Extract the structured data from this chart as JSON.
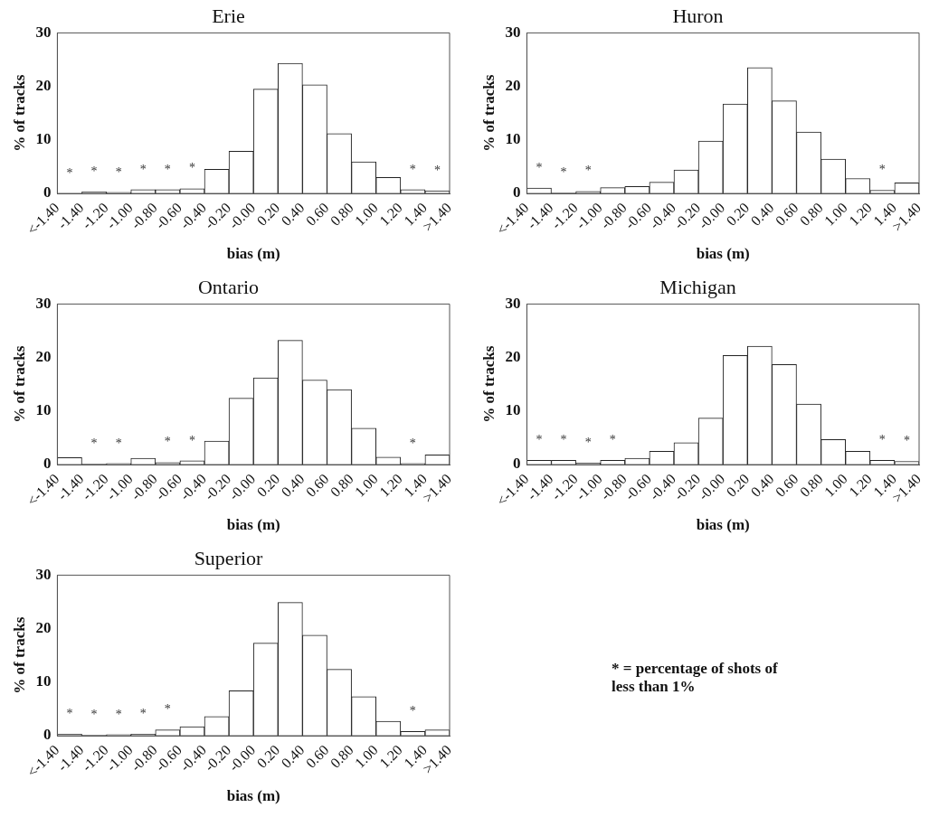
{
  "chart_data": [
    {
      "type": "histogram",
      "title": "Erie",
      "xlabel": "bias (m)",
      "ylabel": "% of tracks",
      "color": "#ffffff",
      "bins": [
        -1.6,
        -1.4,
        -1.2,
        -1.0,
        -0.8,
        -0.6,
        -0.4,
        -0.2,
        0,
        0.2,
        0.4,
        0.6,
        0.8,
        1.0,
        1.2,
        1.4,
        1.6
      ],
      "values": [
        0,
        0.3,
        0.2,
        0.7,
        0.7,
        0.9,
        4.5,
        7.9,
        19.5,
        24.3,
        20.3,
        11.2,
        5.9,
        3.0,
        0.7,
        0.5
      ],
      "value_labels": [
        "*",
        "*",
        "*",
        "*",
        "*",
        "*",
        null,
        null,
        null,
        null,
        null,
        null,
        null,
        null,
        "*",
        "*"
      ],
      "xlim": [
        -1.6,
        1.6
      ],
      "ylim": [
        0,
        30
      ],
      "yticks": [
        0,
        10,
        20,
        30
      ],
      "xticks": [
        {
          "value": -1.6,
          "label": "<-1.40"
        },
        {
          "value": -1.4,
          "label": "-1.40"
        },
        {
          "value": -1.2,
          "label": "-1.20"
        },
        {
          "value": -1.0,
          "label": "-1.00"
        },
        {
          "value": -0.8,
          "label": "-0.80"
        },
        {
          "value": -0.6,
          "label": "-0.60"
        },
        {
          "value": -0.4,
          "label": "-0.40"
        },
        {
          "value": -0.2,
          "label": "-0.20"
        },
        {
          "value": 0,
          "label": "-0.00"
        },
        {
          "value": 0.2,
          "label": "0.20"
        },
        {
          "value": 0.4,
          "label": "0.40"
        },
        {
          "value": 0.6,
          "label": "0.60"
        },
        {
          "value": 0.8,
          "label": "0.80"
        },
        {
          "value": 1.0,
          "label": "1.00"
        },
        {
          "value": 1.2,
          "label": "1.20"
        },
        {
          "value": 1.4,
          "label": "1.40"
        },
        {
          "value": 1.6,
          "label": ">1.40"
        }
      ]
    },
    {
      "type": "histogram",
      "title": "Huron",
      "xlabel": "bias (m)",
      "ylabel": "% of tracks",
      "color": "#ffffff",
      "bins": [
        -1.6,
        -1.4,
        -1.2,
        -1.0,
        -0.8,
        -0.6,
        -0.4,
        -0.2,
        0,
        0.2,
        0.4,
        0.6,
        0.8,
        1.0,
        1.2,
        1.4,
        1.6
      ],
      "values": [
        1.0,
        0.1,
        0.4,
        1.1,
        1.3,
        2.1,
        4.4,
        9.8,
        16.7,
        23.5,
        17.3,
        11.5,
        6.4,
        2.8,
        0.6,
        2.0
      ],
      "value_labels": [
        "*",
        "*",
        "*",
        null,
        null,
        null,
        null,
        null,
        null,
        null,
        null,
        null,
        null,
        null,
        "*",
        null
      ],
      "xlim": [
        -1.6,
        1.6
      ],
      "ylim": [
        0,
        30
      ],
      "yticks": [
        0,
        10,
        20,
        30
      ],
      "xticks": [
        {
          "value": -1.6,
          "label": "<-1.40"
        },
        {
          "value": -1.4,
          "label": "-1.40"
        },
        {
          "value": -1.2,
          "label": "-1.20"
        },
        {
          "value": -1.0,
          "label": "-1.00"
        },
        {
          "value": -0.8,
          "label": "-0.80"
        },
        {
          "value": -0.6,
          "label": "-0.60"
        },
        {
          "value": -0.4,
          "label": "-0.40"
        },
        {
          "value": -0.2,
          "label": "-0.20"
        },
        {
          "value": 0,
          "label": "-0.00"
        },
        {
          "value": 0.2,
          "label": "0.20"
        },
        {
          "value": 0.4,
          "label": "0.40"
        },
        {
          "value": 0.6,
          "label": "0.60"
        },
        {
          "value": 0.8,
          "label": "0.80"
        },
        {
          "value": 1.0,
          "label": "1.00"
        },
        {
          "value": 1.2,
          "label": "1.20"
        },
        {
          "value": 1.4,
          "label": "1.40"
        },
        {
          "value": 1.6,
          "label": ">1.40"
        }
      ]
    },
    {
      "type": "histogram",
      "title": "Ontario",
      "xlabel": "bias (m)",
      "ylabel": "% of tracks",
      "color": "#ffffff",
      "bins": [
        -1.6,
        -1.4,
        -1.2,
        -1.0,
        -0.8,
        -0.6,
        -0.4,
        -0.2,
        0,
        0.2,
        0.4,
        0.6,
        0.8,
        1.0,
        1.2,
        1.4,
        1.6
      ],
      "values": [
        1.3,
        0.1,
        0.2,
        1.2,
        0.4,
        0.7,
        4.4,
        12.4,
        16.2,
        23.2,
        15.8,
        14.0,
        6.8,
        1.4,
        0.2,
        1.8
      ],
      "value_labels": [
        null,
        "*",
        "*",
        null,
        "*",
        "*",
        null,
        null,
        null,
        null,
        null,
        null,
        null,
        null,
        "*",
        null
      ],
      "xlim": [
        -1.6,
        1.6
      ],
      "ylim": [
        0,
        30
      ],
      "yticks": [
        0,
        10,
        20,
        30
      ],
      "xticks": [
        {
          "value": -1.6,
          "label": "<-1.40"
        },
        {
          "value": -1.4,
          "label": "-1.40"
        },
        {
          "value": -1.2,
          "label": "-1.20"
        },
        {
          "value": -1.0,
          "label": "-1.00"
        },
        {
          "value": -0.8,
          "label": "-0.80"
        },
        {
          "value": -0.6,
          "label": "-0.60"
        },
        {
          "value": -0.4,
          "label": "-0.40"
        },
        {
          "value": -0.2,
          "label": "-0.20"
        },
        {
          "value": 0,
          "label": "-0.00"
        },
        {
          "value": 0.2,
          "label": "0.20"
        },
        {
          "value": 0.4,
          "label": "0.40"
        },
        {
          "value": 0.6,
          "label": "0.60"
        },
        {
          "value": 0.8,
          "label": "0.80"
        },
        {
          "value": 1.0,
          "label": "1.00"
        },
        {
          "value": 1.2,
          "label": "1.20"
        },
        {
          "value": 1.4,
          "label": "1.40"
        },
        {
          "value": 1.6,
          "label": ">1.40"
        }
      ]
    },
    {
      "type": "histogram",
      "title": "Michigan",
      "xlabel": "bias (m)",
      "ylabel": "% of tracks",
      "color": "#ffffff",
      "bins": [
        -1.6,
        -1.4,
        -1.2,
        -1.0,
        -0.8,
        -0.6,
        -0.4,
        -0.2,
        0,
        0.2,
        0.4,
        0.6,
        0.8,
        1.0,
        1.2,
        1.4,
        1.6
      ],
      "values": [
        0.8,
        0.8,
        0.3,
        0.8,
        1.2,
        2.5,
        4.1,
        8.7,
        20.4,
        22.1,
        18.7,
        11.3,
        4.7,
        2.5,
        0.8,
        0.6
      ],
      "value_labels": [
        "*",
        "*",
        "*",
        "*",
        null,
        null,
        null,
        null,
        null,
        null,
        null,
        null,
        null,
        null,
        "*",
        "*"
      ],
      "xlim": [
        -1.6,
        1.6
      ],
      "ylim": [
        0,
        30
      ],
      "yticks": [
        0,
        10,
        20,
        30
      ],
      "xticks": [
        {
          "value": -1.6,
          "label": "<-1.40"
        },
        {
          "value": -1.4,
          "label": "-1.40"
        },
        {
          "value": -1.2,
          "label": "-1.20"
        },
        {
          "value": -1.0,
          "label": "-1.00"
        },
        {
          "value": -0.8,
          "label": "-0.80"
        },
        {
          "value": -0.6,
          "label": "-0.60"
        },
        {
          "value": -0.4,
          "label": "-0.40"
        },
        {
          "value": -0.2,
          "label": "-0.20"
        },
        {
          "value": 0,
          "label": "-0.00"
        },
        {
          "value": 0.2,
          "label": "0.20"
        },
        {
          "value": 0.4,
          "label": "0.40"
        },
        {
          "value": 0.6,
          "label": "0.60"
        },
        {
          "value": 0.8,
          "label": "0.80"
        },
        {
          "value": 1.0,
          "label": "1.00"
        },
        {
          "value": 1.2,
          "label": "1.20"
        },
        {
          "value": 1.4,
          "label": "1.40"
        },
        {
          "value": 1.6,
          "label": ">1.40"
        }
      ]
    },
    {
      "type": "histogram",
      "title": "Superior",
      "xlabel": "bias (m)",
      "ylabel": "% of tracks",
      "color": "#ffffff",
      "bins": [
        -1.6,
        -1.4,
        -1.2,
        -1.0,
        -0.8,
        -0.6,
        -0.4,
        -0.2,
        0,
        0.2,
        0.4,
        0.6,
        0.8,
        1.0,
        1.2,
        1.4,
        1.6
      ],
      "values": [
        0.3,
        0.1,
        0.2,
        0.3,
        1.1,
        1.7,
        3.6,
        8.4,
        17.3,
        24.9,
        18.8,
        12.4,
        7.3,
        2.7,
        0.8,
        1.1
      ],
      "value_labels": [
        "*",
        "*",
        "*",
        "*",
        "*",
        null,
        null,
        null,
        null,
        null,
        null,
        null,
        null,
        null,
        "*",
        null
      ],
      "xlim": [
        -1.6,
        1.6
      ],
      "ylim": [
        0,
        30
      ],
      "yticks": [
        0,
        10,
        20,
        30
      ],
      "xticks": [
        {
          "value": -1.6,
          "label": "<-1.40"
        },
        {
          "value": -1.4,
          "label": "-1.40"
        },
        {
          "value": -1.2,
          "label": "-1.20"
        },
        {
          "value": -1.0,
          "label": "-1.00"
        },
        {
          "value": -0.8,
          "label": "-0.80"
        },
        {
          "value": -0.6,
          "label": "-0.60"
        },
        {
          "value": -0.4,
          "label": "-0.40"
        },
        {
          "value": -0.2,
          "label": "-0.20"
        },
        {
          "value": 0,
          "label": "-0.00"
        },
        {
          "value": 0.2,
          "label": "0.20"
        },
        {
          "value": 0.4,
          "label": "0.40"
        },
        {
          "value": 0.6,
          "label": "0.60"
        },
        {
          "value": 0.8,
          "label": "0.80"
        },
        {
          "value": 1.0,
          "label": "1.00"
        },
        {
          "value": 1.2,
          "label": "1.20"
        },
        {
          "value": 1.4,
          "label": "1.40"
        },
        {
          "value": 1.6,
          "label": ">1.40"
        }
      ]
    },
    {
      "type": "other",
      "annotations": [
        "* = percentage of shots of less than 1%"
      ]
    }
  ]
}
